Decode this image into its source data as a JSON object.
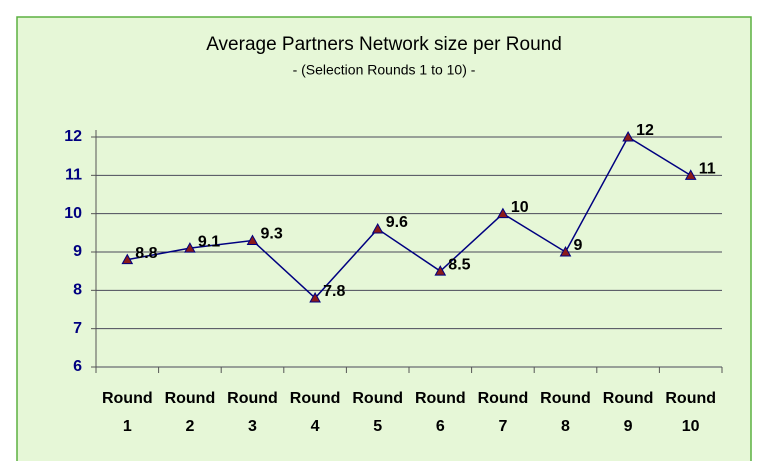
{
  "chart_data": {
    "type": "line",
    "title": "Average Partners Network size per Round",
    "subtitle": "- (Selection Rounds 1 to 10) -",
    "categories": [
      "Round 1",
      "Round 2",
      "Round 3",
      "Round 4",
      "Round 5",
      "Round 6",
      "Round 7",
      "Round 8",
      "Round 9",
      "Round 10"
    ],
    "series": [
      {
        "name": "Average Partners Network size",
        "color": "#000080",
        "marker_color": "#8b1a1a",
        "values": [
          8.8,
          9.1,
          9.3,
          7.8,
          9.6,
          8.5,
          10,
          9,
          12,
          11
        ]
      }
    ],
    "ylim": [
      6,
      12
    ],
    "yticks": [
      6,
      7,
      8,
      9,
      10,
      11,
      12
    ],
    "grid": true
  }
}
